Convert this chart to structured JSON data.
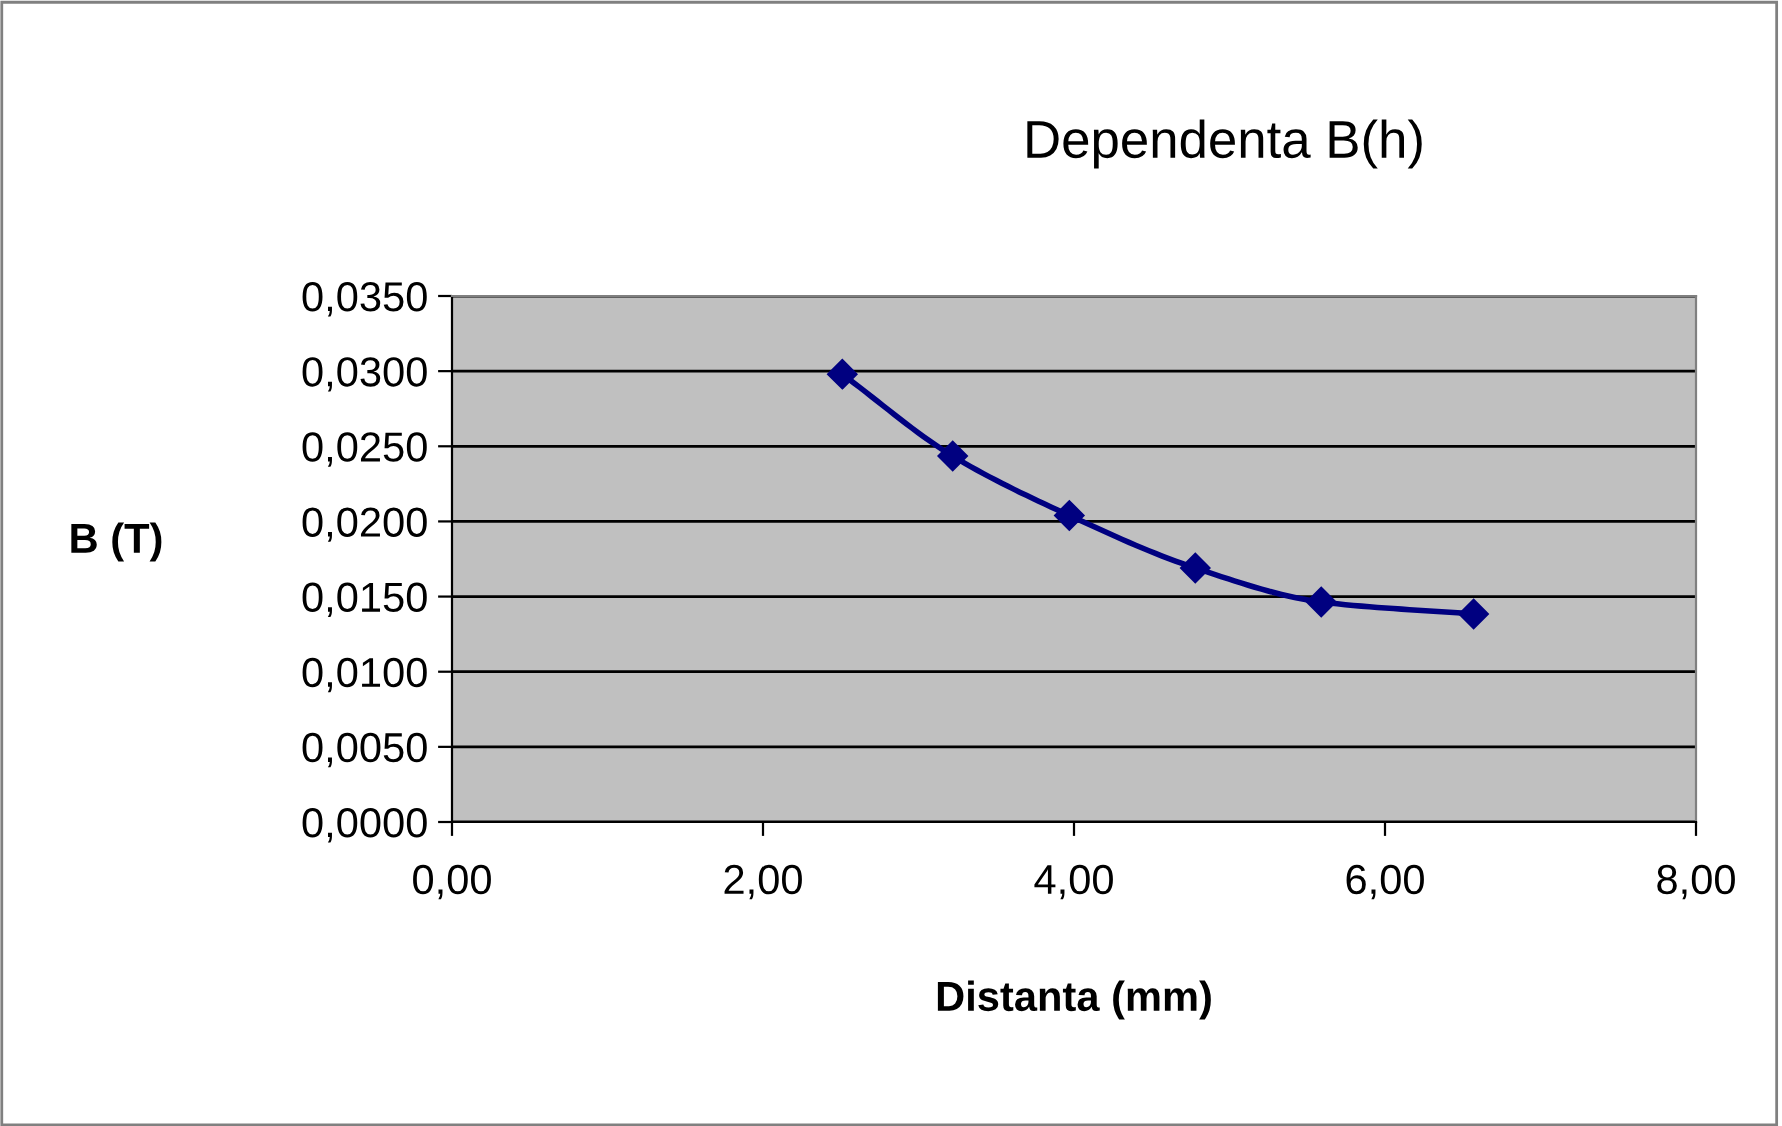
{
  "chart_data": {
    "type": "line",
    "title": "Dependenta B(h)",
    "xlabel": "Distanta (mm)",
    "ylabel": "B (T)",
    "x": [
      2.51,
      3.22,
      3.97,
      4.78,
      5.59,
      6.57
    ],
    "series": [
      {
        "color": "#000080",
        "values": [
          0.0298,
          0.02435,
          0.0204,
          0.0169,
          0.01464,
          0.01384
        ]
      }
    ],
    "xlim": [
      0,
      8
    ],
    "xticks": [
      {
        "value": 0,
        "label": "0,00"
      },
      {
        "value": 2,
        "label": "2,00"
      },
      {
        "value": 4,
        "label": "4,00"
      },
      {
        "value": 6,
        "label": "6,00"
      },
      {
        "value": 8,
        "label": "8,00"
      }
    ],
    "ylim": [
      0,
      0.035
    ],
    "yticks": [
      {
        "value": 0,
        "label": "0,0000"
      },
      {
        "value": 0.005,
        "label": "0,0050"
      },
      {
        "value": 0.01,
        "label": "0,0100"
      },
      {
        "value": 0.015,
        "label": "0,0150"
      },
      {
        "value": 0.02,
        "label": "0,0200"
      },
      {
        "value": 0.025,
        "label": "0,0250"
      },
      {
        "value": 0.03,
        "label": "0,0300"
      },
      {
        "value": 0.035,
        "label": "0,0350"
      }
    ],
    "grid": "y",
    "marker": "diamond",
    "line_style": "solid",
    "legend": false
  }
}
